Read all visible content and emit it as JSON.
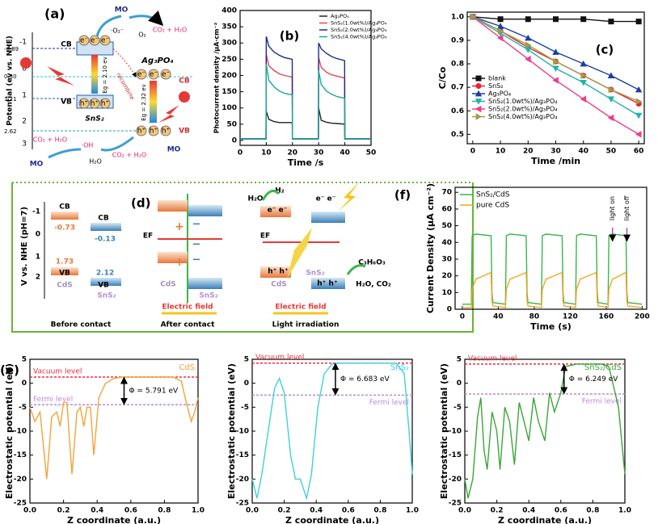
{
  "panel_a": {
    "label": "(a)",
    "y_axis_title": "Potential (ev vs. NHE)",
    "ticks": [
      "-1",
      "0",
      "1",
      "2",
      "3"
    ],
    "levels": [
      "-0.89",
      "0.30",
      "1.21",
      "2.62"
    ],
    "cb": "CB",
    "vb": "VB",
    "electron": "e⁻",
    "hole": "h⁺",
    "sns2": "SnS₂",
    "ag3po4": "Ag₃PO₄",
    "eg_sns2": "Eg = 2.10 ev",
    "eg_ag3po4": "Eg = 2.32 ev",
    "recombine": "recombine",
    "superoxide": "·O₂⁻",
    "o2": "O₂",
    "mo": "MO",
    "co2_h2o": "CO₂ + H₂O",
    "oh": "·OH",
    "h2o": "H₂O"
  },
  "panel_d": {
    "label": "(d)",
    "y_axis_title": "V vs. NHE (pH=7)",
    "ticks": [
      "-1",
      "0",
      "1",
      "2"
    ],
    "cb": "CB",
    "vb": "VB",
    "cds_cb": "-0.73",
    "sns2_cb": "-0.13",
    "cds_vb": "1.73",
    "sns2_vb": "2.12",
    "cds": "CdS",
    "sns2": "SnS₂",
    "before": "Before contact",
    "ef": "EF",
    "plus": "+",
    "minus": "−",
    "field": "Electric field",
    "after": "After contact",
    "h2o": "H₂O",
    "h2": "H₂",
    "ee": "e⁻ e⁻",
    "hh": "h⁺ h⁺",
    "lactic": "C₃H₆O₃",
    "products": "H₂O, CO₂",
    "light": "Light irradiation"
  },
  "chart_data": [
    {
      "type": "line",
      "panel_label": "(b)",
      "x_label": "Time /s",
      "y_label": "Photocurrent density /μA·cm⁻²",
      "xlim": [
        0,
        50
      ],
      "ylim": [
        -15,
        400
      ],
      "xticks": [
        0,
        10,
        20,
        30,
        40,
        50
      ],
      "yticks": [
        0,
        50,
        100,
        150,
        200,
        250,
        300,
        350,
        400
      ],
      "legend": "upper right",
      "x": [
        0,
        9.9,
        10,
        11,
        13,
        15,
        17,
        19.9,
        20,
        21,
        29.9,
        30,
        31,
        33,
        35,
        37,
        39.9,
        40,
        41,
        50
      ],
      "series": [
        {
          "name": "Ag₃PO₄",
          "color": "#222222",
          "values": [
            5,
            5,
            90,
            65,
            58,
            55,
            55,
            55,
            5,
            5,
            5,
            100,
            62,
            56,
            53,
            52,
            50,
            5,
            5,
            5
          ]
        },
        {
          "name": "SnS₂(1.0wt%)/Ag₃PO₄",
          "color": "#e8474f",
          "values": [
            5,
            5,
            265,
            230,
            215,
            205,
            200,
            195,
            5,
            5,
            5,
            255,
            225,
            210,
            202,
            198,
            192,
            5,
            5,
            5
          ]
        },
        {
          "name": "SnS₂(2.0wt%)/Ag₃PO₄",
          "color": "#1f2a8c",
          "values": [
            5,
            5,
            320,
            290,
            272,
            262,
            255,
            250,
            5,
            5,
            5,
            300,
            282,
            268,
            258,
            252,
            246,
            5,
            5,
            5
          ]
        },
        {
          "name": "SnS₂(4.0wt%)/Ag₃PO₄",
          "color": "#1aa89a",
          "values": [
            5,
            5,
            235,
            185,
            165,
            152,
            145,
            140,
            5,
            5,
            5,
            215,
            172,
            152,
            142,
            135,
            130,
            5,
            5,
            5
          ]
        }
      ]
    },
    {
      "type": "line",
      "panel_label": "(c)",
      "x_label": "Time /min",
      "y_label": "C/Co",
      "xlim": [
        -2,
        62
      ],
      "ylim": [
        0.46,
        1.02
      ],
      "xticks": [
        0,
        10,
        20,
        30,
        40,
        50,
        60
      ],
      "yticks": [
        0.5,
        0.6,
        0.7,
        0.8,
        0.9,
        {
          "value": 1,
          "label": "1.0"
        }
      ],
      "legend": "lower left",
      "x": [
        0,
        10,
        20,
        30,
        40,
        50,
        60
      ],
      "series": [
        {
          "name": "blank",
          "color": "#111111",
          "marker": "square",
          "values": [
            1,
            0.99,
            0.99,
            0.99,
            0.99,
            0.98,
            0.98
          ]
        },
        {
          "name": "SnS₂",
          "color": "#e8232a",
          "marker": "circle",
          "values": [
            1,
            0.94,
            0.87,
            0.81,
            0.75,
            0.69,
            0.63
          ]
        },
        {
          "name": "Ag₃PO₄",
          "color": "#1a3ea3",
          "marker": "triangle-up",
          "values": [
            1,
            0.96,
            0.91,
            0.85,
            0.8,
            0.75,
            0.69
          ]
        },
        {
          "name": "SnS₂(1.0wt%)/Ag₃PO₄",
          "color": "#20b2aa",
          "marker": "triangle-down",
          "values": [
            1,
            0.93,
            0.86,
            0.78,
            0.72,
            0.65,
            0.58
          ]
        },
        {
          "name": "SnS₂(2.0wt%)/Ag₃PO₄",
          "color": "#ee3d8a",
          "marker": "triangle-left",
          "values": [
            1,
            0.91,
            0.82,
            0.73,
            0.65,
            0.57,
            0.5
          ]
        },
        {
          "name": "SnS₂(4.0wt%)/Ag₃PO₄",
          "color": "#a39b4a",
          "marker": "triangle-right",
          "values": [
            1,
            0.94,
            0.88,
            0.81,
            0.75,
            0.69,
            0.64
          ]
        }
      ]
    },
    {
      "type": "line",
      "panel_label": "(f)",
      "x_label": "Time (s)",
      "y_label": "Current Density (μA cm⁻²)",
      "xlim": [
        -8,
        205
      ],
      "ylim": [
        0,
        73
      ],
      "xticks": [
        0,
        40,
        80,
        120,
        160,
        200
      ],
      "yticks": [
        0,
        10,
        20,
        30,
        40,
        50,
        60,
        70
      ],
      "legend": "upper left",
      "annotations": [
        "light on",
        "light off"
      ],
      "x": [
        0,
        10,
        11,
        15,
        32,
        33,
        34,
        48,
        49,
        53,
        71,
        72,
        73,
        88,
        89,
        93,
        111,
        112,
        113,
        126,
        127,
        131,
        149,
        150,
        151,
        162,
        163,
        167,
        182,
        183,
        184,
        200
      ],
      "series": [
        {
          "name": "SnS₂/CdS",
          "color": "#3bb54a",
          "values": [
            3,
            3,
            44,
            45,
            44,
            10,
            4,
            3,
            44,
            45,
            44,
            10,
            4,
            3,
            44,
            45,
            44,
            10,
            4,
            3,
            44,
            45,
            44,
            10,
            4,
            3,
            44,
            45,
            44,
            10,
            4,
            3
          ]
        },
        {
          "name": "pure CdS",
          "color": "#f5a623",
          "values": [
            1,
            1,
            12,
            18,
            22,
            5,
            2,
            1,
            12,
            18,
            22,
            5,
            2,
            1,
            12,
            18,
            22,
            5,
            2,
            1,
            12,
            18,
            22,
            5,
            2,
            1,
            12,
            18,
            22,
            5,
            2,
            1
          ]
        }
      ]
    },
    {
      "type": "line",
      "panel_label": "(e)",
      "x_label": "Z coordinate (a.u.)",
      "y_label": "Electrostatic potential (eV)",
      "xlim": [
        0,
        1
      ],
      "ylim": [
        -25,
        5
      ],
      "xticks": [
        {
          "value": 0,
          "label": "0.0"
        },
        0.2,
        0.4,
        0.6,
        0.8,
        {
          "value": 1,
          "label": "1.0"
        }
      ],
      "yticks": [
        -25,
        -20,
        -15,
        -10,
        -5,
        0,
        5
      ],
      "legend": "upper right",
      "x": [
        0,
        0.03,
        0.06,
        0.1,
        0.13,
        0.16,
        0.18,
        0.2,
        0.22,
        0.25,
        0.28,
        0.3,
        0.32,
        0.34,
        0.36,
        0.38,
        0.41,
        0.45,
        0.5,
        0.55,
        0.7,
        0.85,
        0.9,
        0.93,
        0.96,
        0.98,
        1
      ],
      "series": [
        {
          "name": "CdS",
          "color": "#f5a33a",
          "values": [
            -5,
            -8,
            -6,
            -20,
            -7,
            -6,
            -9,
            -4,
            -4,
            -19,
            -6,
            -5,
            -9,
            -5,
            -5,
            -15,
            -3,
            0,
            1,
            1.3,
            1.3,
            1.3,
            0.5,
            -4,
            -8,
            -6,
            -3
          ]
        }
      ],
      "levels": [
        {
          "name": "Vacuum level",
          "value": 1.3,
          "color": "#e8323c"
        },
        {
          "name": "Fermi level",
          "value": -4.49,
          "color": "#b88ae0"
        }
      ],
      "annotation": "Φ = 5.791 eV"
    },
    {
      "type": "line",
      "x_label": "Z coordinate (a.u.)",
      "y_label": "Electrostatic potential (eV)",
      "xlim": [
        0,
        1
      ],
      "ylim": [
        -25,
        5
      ],
      "xticks": [
        {
          "value": 0,
          "label": "0.0"
        },
        0.2,
        0.4,
        0.6,
        0.8,
        {
          "value": 1,
          "label": "1.0"
        }
      ],
      "yticks": [
        -25,
        -20,
        -15,
        -10,
        -5,
        0,
        5
      ],
      "legend": "upper right",
      "x": [
        0,
        0.03,
        0.06,
        0.1,
        0.14,
        0.17,
        0.2,
        0.24,
        0.27,
        0.3,
        0.34,
        0.37,
        0.41,
        0.45,
        0.5,
        0.55,
        0.7,
        0.9,
        0.95,
        0.98,
        1
      ],
      "series": [
        {
          "name": "SnS₂",
          "color": "#3fd0de",
          "values": [
            -20,
            -24,
            -19,
            -10,
            -1,
            1,
            -2,
            -15,
            -20,
            -20,
            -24,
            -19,
            -5,
            2,
            4,
            4.2,
            4.2,
            4.2,
            2,
            -10,
            -19
          ]
        }
      ],
      "levels": [
        {
          "name": "Vacuum level",
          "value": 4.2,
          "color": "#e8323c"
        },
        {
          "name": "Fermi level",
          "value": -2.483,
          "color": "#b88ae0"
        }
      ],
      "annotation": "Φ = 6.683 eV"
    },
    {
      "type": "line",
      "x_label": "Z coordinate (a.u.)",
      "y_label": "Electrostatic potential (eV)",
      "xlim": [
        0,
        1
      ],
      "ylim": [
        -25,
        5
      ],
      "xticks": [
        {
          "value": 0,
          "label": "0.0"
        },
        0.2,
        0.4,
        0.6,
        0.8,
        {
          "value": 1,
          "label": "1.0"
        }
      ],
      "yticks": [
        -25,
        -20,
        -15,
        -10,
        -5,
        0,
        5
      ],
      "legend": "upper right",
      "x": [
        0,
        0.02,
        0.05,
        0.08,
        0.1,
        0.12,
        0.14,
        0.17,
        0.2,
        0.22,
        0.25,
        0.28,
        0.31,
        0.34,
        0.37,
        0.4,
        0.43,
        0.46,
        0.5,
        0.53,
        0.56,
        0.6,
        0.63,
        0.7,
        0.85,
        0.9,
        0.96,
        1
      ],
      "series": [
        {
          "name": "SnS₂/CdS",
          "color": "#3aa63a",
          "values": [
            -20,
            -24,
            -20,
            -7,
            -3,
            -14,
            -18,
            -6,
            -10,
            -18,
            -5,
            -8,
            -17,
            -4,
            -8,
            -12,
            -3,
            -8,
            -12,
            -2,
            -6,
            -2,
            3.5,
            4,
            4,
            3.5,
            -5,
            -19
          ]
        }
      ],
      "levels": [
        {
          "name": "Vacuum level",
          "value": 4,
          "color": "#e8323c"
        },
        {
          "name": "Fermi level",
          "value": -2.249,
          "color": "#b88ae0"
        }
      ],
      "annotation": "Φ = 6.249 eV"
    }
  ]
}
